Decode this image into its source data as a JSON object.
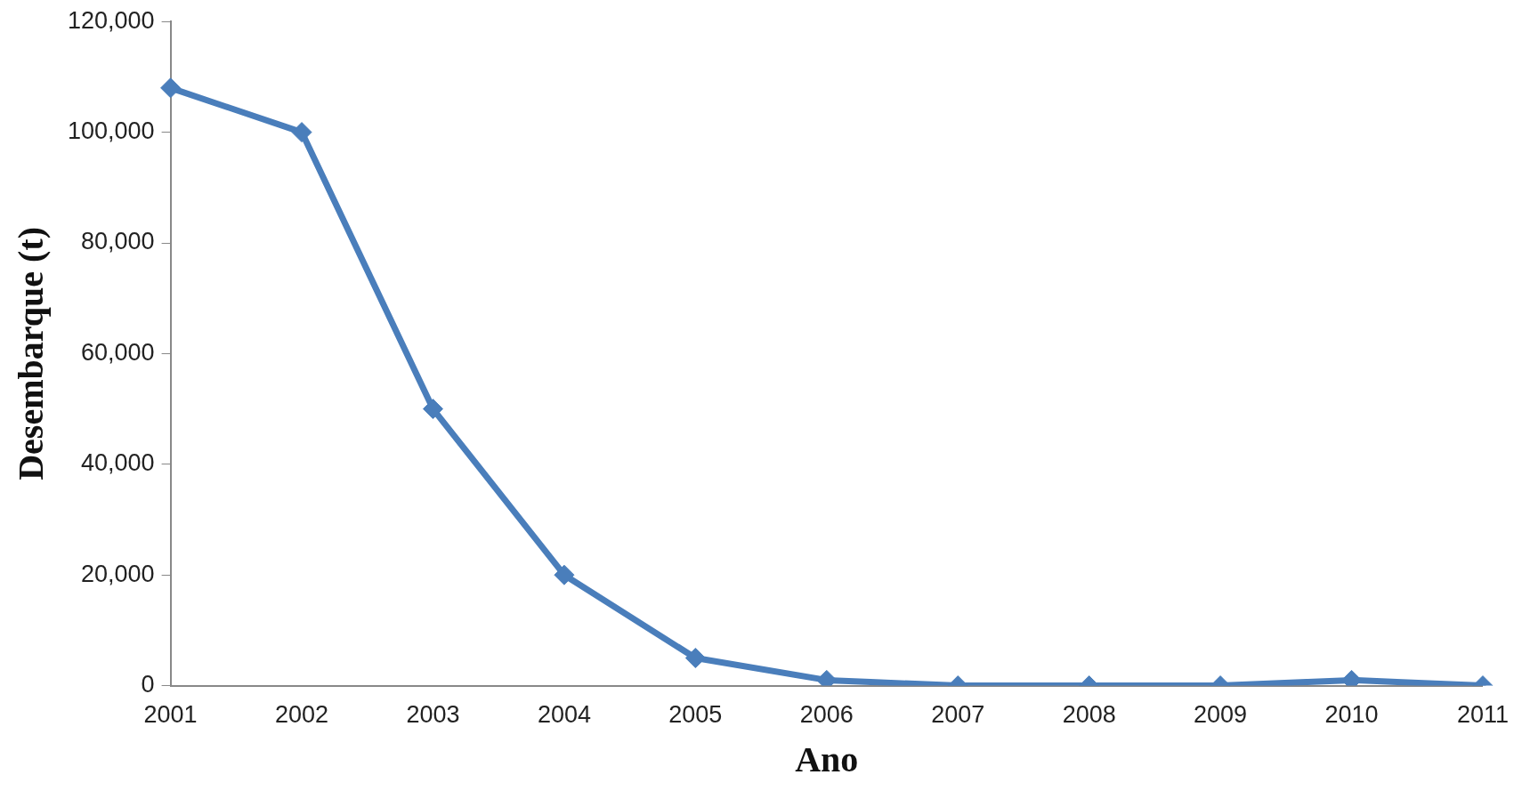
{
  "chart_data": {
    "type": "line",
    "xlabel": "Ano",
    "ylabel": "Desembarque (t)",
    "categories": [
      "2001",
      "2002",
      "2003",
      "2004",
      "2005",
      "2006",
      "2007",
      "2008",
      "2009",
      "2010",
      "2011"
    ],
    "series": [
      {
        "color": "#4a7ebb",
        "values": [
          108000,
          100000,
          50000,
          20000,
          5000,
          1000,
          0,
          0,
          0,
          1000,
          0
        ]
      }
    ],
    "ylim": [
      0,
      120000
    ],
    "yticks": [
      {
        "value": 0,
        "label": "0"
      },
      {
        "value": 20000,
        "label": "20,000"
      },
      {
        "value": 40000,
        "label": "40,000"
      },
      {
        "value": 60000,
        "label": "60,000"
      },
      {
        "value": 80000,
        "label": "80,000"
      },
      {
        "value": 100000,
        "label": "100,000"
      },
      {
        "value": 120000,
        "label": "120,000"
      }
    ],
    "grid": false,
    "legend": false,
    "marker": "diamond",
    "line_style": "solid"
  }
}
